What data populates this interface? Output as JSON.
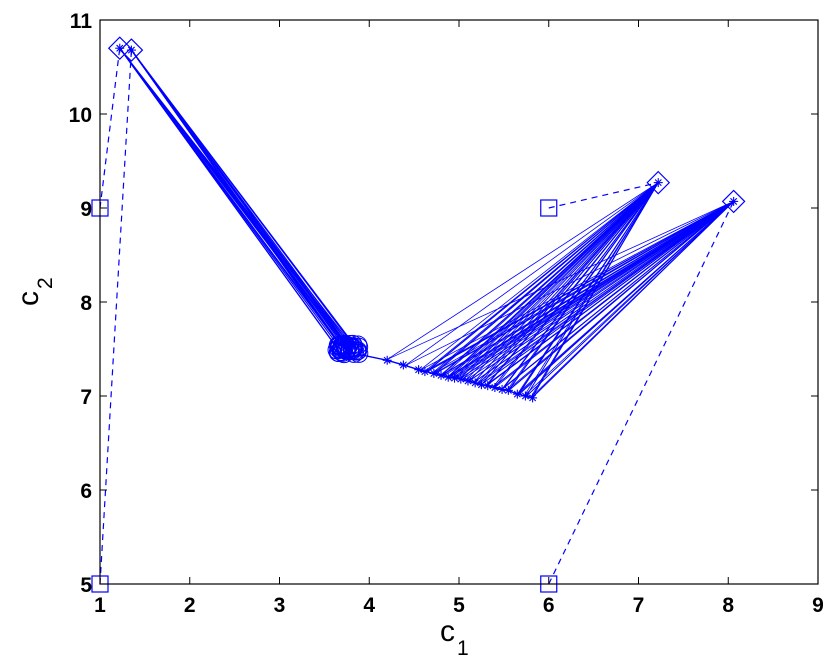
{
  "chart_data": {
    "type": "line",
    "xlabel": "c",
    "xlabel_sub": "1",
    "ylabel": "c",
    "ylabel_sub": "2",
    "xlim": [
      1,
      9
    ],
    "ylim": [
      5,
      11
    ],
    "x_ticks": [
      1,
      2,
      3,
      4,
      5,
      6,
      7,
      8,
      9
    ],
    "y_ticks": [
      5,
      6,
      7,
      8,
      9,
      10,
      11
    ],
    "x_tick_labels": [
      "1",
      "2",
      "3",
      "4",
      "5",
      "6",
      "7",
      "8",
      "9"
    ],
    "y_tick_labels": [
      "5",
      "6",
      "7",
      "8",
      "9",
      "10",
      "11"
    ],
    "grid": false,
    "color": "#0000ff",
    "initial_points": [
      {
        "x": 1.0,
        "y": 9.0
      },
      {
        "x": 1.0,
        "y": 5.0
      },
      {
        "x": 6.0,
        "y": 9.0
      },
      {
        "x": 6.0,
        "y": 5.0
      }
    ],
    "final_points": [
      {
        "x": 1.22,
        "y": 10.7
      },
      {
        "x": 1.35,
        "y": 10.68
      },
      {
        "x": 7.22,
        "y": 9.27
      },
      {
        "x": 8.06,
        "y": 9.07
      }
    ],
    "initial_to_final": [
      [
        0,
        0
      ],
      [
        1,
        1
      ],
      [
        2,
        2
      ],
      [
        3,
        3
      ]
    ],
    "cluster_center": {
      "x": 3.75,
      "y": 7.5
    },
    "intermediate_points": [
      {
        "x": 4.2,
        "y": 7.38
      },
      {
        "x": 4.38,
        "y": 7.33
      },
      {
        "x": 4.55,
        "y": 7.28
      },
      {
        "x": 4.62,
        "y": 7.26
      },
      {
        "x": 4.72,
        "y": 7.24
      },
      {
        "x": 4.8,
        "y": 7.22
      },
      {
        "x": 4.88,
        "y": 7.2
      },
      {
        "x": 4.95,
        "y": 7.19
      },
      {
        "x": 5.02,
        "y": 7.18
      },
      {
        "x": 5.1,
        "y": 7.16
      },
      {
        "x": 5.18,
        "y": 7.14
      },
      {
        "x": 5.25,
        "y": 7.12
      },
      {
        "x": 5.32,
        "y": 7.11
      },
      {
        "x": 5.4,
        "y": 7.09
      },
      {
        "x": 5.48,
        "y": 7.07
      },
      {
        "x": 5.55,
        "y": 7.06
      },
      {
        "x": 5.65,
        "y": 7.02
      },
      {
        "x": 5.74,
        "y": 7.0
      },
      {
        "x": 5.82,
        "y": 6.98
      }
    ],
    "markers": {
      "initial": "square",
      "final": "diamond",
      "intermediate": "asterisk",
      "cluster": "circle"
    }
  }
}
